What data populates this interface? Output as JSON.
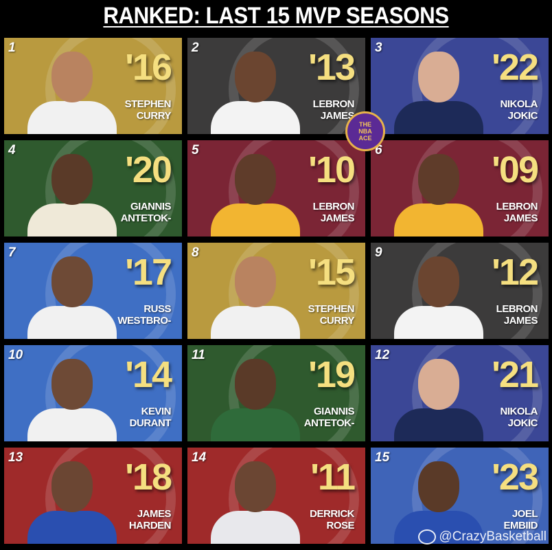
{
  "title": "RANKED: LAST 15 MVP SEASONS",
  "badge": {
    "lines": [
      "THE",
      "NBA",
      "ACE"
    ]
  },
  "watermark": "@CrazyBasketball",
  "cards": [
    {
      "rank": "1",
      "year": "'16",
      "first": "STEPHEN",
      "last": "CURRY",
      "bg": "#b99a3f",
      "jersey": "#f1f1f1",
      "skin": "#b98360"
    },
    {
      "rank": "2",
      "year": "'13",
      "first": "LEBRON",
      "last": "JAMES",
      "bg": "#3c3b3b",
      "jersey": "#f3f3f3",
      "skin": "#6b4530"
    },
    {
      "rank": "3",
      "year": "'22",
      "first": "NIKOLA",
      "last": "JOKIC",
      "bg": "#3b4796",
      "jersey": "#1d2a58",
      "skin": "#d9ad94"
    },
    {
      "rank": "4",
      "year": "'20",
      "first": "GIANNIS",
      "last": "ANTETOK-",
      "bg": "#2f5a2e",
      "jersey": "#efe9d8",
      "skin": "#5a3a28"
    },
    {
      "rank": "5",
      "year": "'10",
      "first": "LEBRON",
      "last": "JAMES",
      "bg": "#7b2535",
      "jersey": "#f2b531",
      "skin": "#5f3c2a"
    },
    {
      "rank": "6",
      "year": "'09",
      "first": "LEBRON",
      "last": "JAMES",
      "bg": "#7b2535",
      "jersey": "#f2b531",
      "skin": "#5f3c2a"
    },
    {
      "rank": "7",
      "year": "'17",
      "first": "RUSS",
      "last": "WESTBRO-",
      "bg": "#3f6fc4",
      "jersey": "#f1f1f1",
      "skin": "#6e4a36"
    },
    {
      "rank": "8",
      "year": "'15",
      "first": "STEPHEN",
      "last": "CURRY",
      "bg": "#b99a3f",
      "jersey": "#f1f1f1",
      "skin": "#b98360"
    },
    {
      "rank": "9",
      "year": "'12",
      "first": "LEBRON",
      "last": "JAMES",
      "bg": "#3c3b3b",
      "jersey": "#f3f3f3",
      "skin": "#6b4530"
    },
    {
      "rank": "10",
      "year": "'14",
      "first": "KEVIN",
      "last": "DURANT",
      "bg": "#3f6fc4",
      "jersey": "#f1f1f1",
      "skin": "#6e4a36"
    },
    {
      "rank": "11",
      "year": "'19",
      "first": "GIANNIS",
      "last": "ANTETOK-",
      "bg": "#2f5a2e",
      "jersey": "#2f6b3a",
      "skin": "#5a3a28"
    },
    {
      "rank": "12",
      "year": "'21",
      "first": "NIKOLA",
      "last": "JOKIC",
      "bg": "#3b4796",
      "jersey": "#1d2a58",
      "skin": "#d9ad94"
    },
    {
      "rank": "13",
      "year": "'18",
      "first": "JAMES",
      "last": "HARDEN",
      "bg": "#9f2a2a",
      "jersey": "#2a4fb0",
      "skin": "#6b4633"
    },
    {
      "rank": "14",
      "year": "'11",
      "first": "DERRICK",
      "last": "ROSE",
      "bg": "#9f2a2a",
      "jersey": "#e8e8ec",
      "skin": "#6b4633"
    },
    {
      "rank": "15",
      "year": "'23",
      "first": "JOEL",
      "last": "EMBIID",
      "bg": "#3f64b8",
      "jersey": "#2a4fb0",
      "skin": "#5a3a28"
    }
  ]
}
